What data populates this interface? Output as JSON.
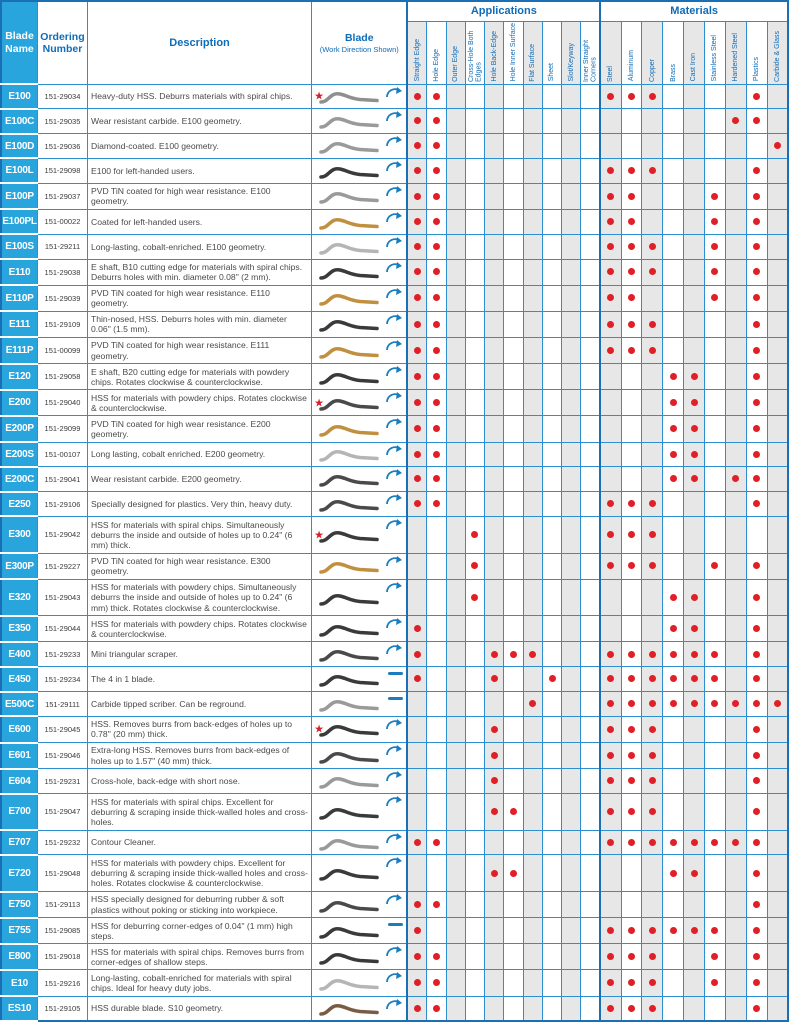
{
  "table": {
    "headers": {
      "blade_name": "Blade Name",
      "ordering_number": "Ordering Number",
      "description": "Description",
      "blade": "Blade",
      "blade_sub": "(Work Direction Shown)",
      "applications": "Applications",
      "materials": "Materials",
      "application_columns": [
        "Straight Edge",
        "Hole Edge",
        "Outer Edge",
        "Cross-Hole Both Edges",
        "Hole Back-Edge",
        "Hole Inner Surface",
        "Flat Surface",
        "Sheet",
        "Slot/Keyway",
        "Inner Straight Corners"
      ],
      "material_columns": [
        "Steel",
        "Aluminum",
        "Copper",
        "Brass",
        "Cast Iron",
        "Stainless Steel",
        "Hardened Steel",
        "Plastics",
        "Carbide & Glass"
      ]
    },
    "colors": {
      "header_blue": "#0e6cb8",
      "cell_blue": "#29a5de",
      "grid_blue": "#2e8fd0",
      "dot_red": "#e01f26",
      "star_red": "#d42027",
      "stripe_gray": "#e7e7e7"
    },
    "rows": [
      {
        "name": "E100",
        "order": "151-29034",
        "desc": "Heavy-duty HSS. Deburrs materials with spiral chips.",
        "star": true,
        "motion": "arc",
        "blade_color": "#8f8f8f",
        "apps": [
          1,
          2
        ],
        "mats": [
          1,
          2,
          3,
          8
        ]
      },
      {
        "name": "E100C",
        "order": "151-29035",
        "desc": "Wear resistant carbide. E100 geometry.",
        "star": false,
        "motion": "arc",
        "blade_color": "#9a9a9a",
        "apps": [
          1,
          2
        ],
        "mats": [
          7,
          8
        ]
      },
      {
        "name": "E100D",
        "order": "151-29036",
        "desc": "Diamond-coated. E100 geometry.",
        "star": false,
        "motion": "arc",
        "blade_color": "#9a9a9a",
        "apps": [
          1,
          2
        ],
        "mats": [
          9
        ]
      },
      {
        "name": "E100L",
        "order": "151-29098",
        "desc": "E100 for left-handed users.",
        "star": false,
        "motion": "arc",
        "blade_color": "#3a3a3a",
        "apps": [
          1,
          2
        ],
        "mats": [
          1,
          2,
          3,
          8
        ]
      },
      {
        "name": "E100P",
        "order": "151-29037",
        "desc": "PVD TiN coated for high wear resistance. E100 geometry.",
        "star": false,
        "motion": "arc",
        "blade_color": "#9a9a9a",
        "apps": [
          1,
          2
        ],
        "mats": [
          1,
          2,
          6,
          8
        ]
      },
      {
        "name": "E100PL",
        "order": "151-00022",
        "desc": "Coated for left-handed users.",
        "star": false,
        "motion": "arc",
        "blade_color": "#c09040",
        "apps": [
          1,
          2
        ],
        "mats": [
          1,
          2,
          6,
          8
        ]
      },
      {
        "name": "E100S",
        "order": "151-29211",
        "desc": "Long-lasting, cobalt-enriched. E100 geometry.",
        "star": false,
        "motion": "arc",
        "blade_color": "#b5b5b5",
        "apps": [
          1,
          2
        ],
        "mats": [
          1,
          2,
          3,
          6,
          8
        ]
      },
      {
        "name": "E110",
        "order": "151-29038",
        "desc": "E shaft, B10 cutting edge for materials with spiral chips. Deburrs holes with min. diameter 0.08\" (2 mm).",
        "star": false,
        "motion": "arc",
        "blade_color": "#3a3a3a",
        "apps": [
          1,
          2
        ],
        "mats": [
          1,
          2,
          3,
          6,
          8
        ]
      },
      {
        "name": "E110P",
        "order": "151-29039",
        "desc": "PVD TiN coated for high wear resistance. E110 geometry.",
        "star": false,
        "motion": "arc",
        "blade_color": "#c09040",
        "apps": [
          1,
          2
        ],
        "mats": [
          1,
          2,
          6,
          8
        ]
      },
      {
        "name": "E111",
        "order": "151-29109",
        "desc": "Thin-nosed, HSS. Deburrs holes with min. diameter 0.06\" (1.5 mm).",
        "star": false,
        "motion": "arc",
        "blade_color": "#3a3a3a",
        "apps": [
          1,
          2
        ],
        "mats": [
          1,
          2,
          3,
          8
        ]
      },
      {
        "name": "E111P",
        "order": "151-00099",
        "desc": "PVD TiN coated for high wear resistance. E111 geometry.",
        "star": false,
        "motion": "arc",
        "blade_color": "#c09040",
        "apps": [
          1,
          2
        ],
        "mats": [
          1,
          2,
          3,
          8
        ]
      },
      {
        "name": "E120",
        "order": "151-29058",
        "desc": "E shaft, B20 cutting edge for materials with powdery chips. Rotates clockwise & counterclockwise.",
        "star": false,
        "motion": "arc",
        "blade_color": "#3a3a3a",
        "apps": [
          1,
          2
        ],
        "mats": [
          4,
          5,
          8
        ]
      },
      {
        "name": "E200",
        "order": "151-29040",
        "desc": "HSS for materials with powdery chips. Rotates clockwise & counterclockwise.",
        "star": true,
        "motion": "arc",
        "blade_color": "#4a4a4a",
        "apps": [
          1,
          2
        ],
        "mats": [
          4,
          5,
          8
        ]
      },
      {
        "name": "E200P",
        "order": "151-29099",
        "desc": "PVD TiN coated for high wear resistance. E200 geometry.",
        "star": false,
        "motion": "arc",
        "blade_color": "#c09040",
        "apps": [
          1,
          2
        ],
        "mats": [
          4,
          5,
          8
        ]
      },
      {
        "name": "E200S",
        "order": "151-00107",
        "desc": "Long lasting, cobalt enriched. E200 geometry.",
        "star": false,
        "motion": "arc",
        "blade_color": "#b5b5b5",
        "apps": [
          1,
          2
        ],
        "mats": [
          4,
          5,
          8
        ]
      },
      {
        "name": "E200C",
        "order": "151-29041",
        "desc": "Wear resistant carbide. E200 geometry.",
        "star": false,
        "motion": "arc",
        "blade_color": "#4a4a4a",
        "apps": [
          1,
          2
        ],
        "mats": [
          4,
          5,
          7,
          8
        ]
      },
      {
        "name": "E250",
        "order": "151-29106",
        "desc": "Specially designed for plastics. Very thin, heavy duty.",
        "star": false,
        "motion": "arc",
        "blade_color": "#4a4a4a",
        "apps": [
          1,
          2
        ],
        "mats": [
          1,
          2,
          3,
          8
        ]
      },
      {
        "name": "E300",
        "order": "151-29042",
        "desc": "HSS for materials with spiral chips. Simultaneously deburrs the inside and outside of holes up to 0.24\" (6 mm) thick.",
        "star": true,
        "motion": "arc",
        "blade_color": "#3a3a3a",
        "apps": [
          4
        ],
        "mats": [
          1,
          2,
          3
        ]
      },
      {
        "name": "E300P",
        "order": "151-29227",
        "desc": "PVD TiN coated for high wear resistance. E300 geometry.",
        "star": false,
        "motion": "arc",
        "blade_color": "#c09040",
        "apps": [
          4
        ],
        "mats": [
          1,
          2,
          3,
          6,
          8
        ]
      },
      {
        "name": "E320",
        "order": "151-29043",
        "desc": "HSS for materials with powdery chips. Simultaneously deburrs the inside and outside of holes up to 0.24\" (6 mm) thick. Rotates clockwise & counterclockwise.",
        "star": false,
        "motion": "arc",
        "blade_color": "#3a3a3a",
        "apps": [
          4
        ],
        "mats": [
          4,
          5,
          8
        ]
      },
      {
        "name": "E350",
        "order": "151-29044",
        "desc": "HSS for materials with powdery chips. Rotates clockwise & counterclockwise.",
        "star": false,
        "motion": "arc",
        "blade_color": "#3a3a3a",
        "apps": [
          1
        ],
        "mats": [
          4,
          5,
          8
        ]
      },
      {
        "name": "E400",
        "order": "151-29233",
        "desc": "Mini triangular scraper.",
        "star": false,
        "motion": "arc",
        "blade_color": "#4a4a4a",
        "apps": [
          1,
          5,
          6,
          7
        ],
        "mats": [
          1,
          2,
          3,
          4,
          5,
          6,
          8
        ]
      },
      {
        "name": "E450",
        "order": "151-29234",
        "desc": "The 4 in 1 blade.",
        "star": false,
        "motion": "line",
        "blade_color": "#3a3a3a",
        "apps": [
          1,
          5,
          8
        ],
        "mats": [
          1,
          2,
          3,
          4,
          5,
          6,
          8
        ]
      },
      {
        "name": "E500C",
        "order": "151-29111",
        "desc": "Carbide tipped scriber. Can be reground.",
        "star": false,
        "motion": "line",
        "blade_color": "#9a9a9a",
        "apps": [
          7
        ],
        "mats": [
          1,
          2,
          3,
          4,
          5,
          6,
          7,
          8,
          9
        ]
      },
      {
        "name": "E600",
        "order": "151-29045",
        "desc": "HSS. Removes burrs from back-edges of holes up to 0.78\" (20 mm) thick.",
        "star": true,
        "motion": "arc",
        "blade_color": "#3a3a3a",
        "apps": [
          5
        ],
        "mats": [
          1,
          2,
          3,
          8
        ]
      },
      {
        "name": "E601",
        "order": "151-29046",
        "desc": "Extra-long HSS. Removes burrs from back-edges of holes up to 1.57\" (40 mm) thick.",
        "star": false,
        "motion": "arc",
        "blade_color": "#4a4a4a",
        "apps": [
          5
        ],
        "mats": [
          1,
          2,
          3,
          8
        ]
      },
      {
        "name": "E604",
        "order": "151-29231",
        "desc": "Cross-hole, back-edge with short nose.",
        "star": false,
        "motion": "arc",
        "blade_color": "#9a9a9a",
        "apps": [
          5
        ],
        "mats": [
          1,
          2,
          3,
          8
        ]
      },
      {
        "name": "E700",
        "order": "151-29047",
        "desc": "HSS for materials with spiral chips. Excellent for deburring & scraping inside thick-walled holes and cross-holes.",
        "star": false,
        "motion": "arc",
        "blade_color": "#3a3a3a",
        "apps": [
          5,
          6
        ],
        "mats": [
          1,
          2,
          3,
          8
        ]
      },
      {
        "name": "E707",
        "order": "151-29232",
        "desc": "Contour Cleaner.",
        "star": false,
        "motion": "arc",
        "blade_color": "#9a9a9a",
        "apps": [
          1,
          2
        ],
        "mats": [
          1,
          2,
          3,
          4,
          5,
          6,
          7,
          8
        ]
      },
      {
        "name": "E720",
        "order": "151-29048",
        "desc": "HSS for materials with powdery chips. Excellent for deburring & scraping inside thick-walled holes and cross-holes. Rotates clockwise & counterclockwise.",
        "star": false,
        "motion": "arc",
        "blade_color": "#3a3a3a",
        "apps": [
          5,
          6
        ],
        "mats": [
          4,
          5,
          8
        ]
      },
      {
        "name": "E750",
        "order": "151-29113",
        "desc": "HSS specially designed for deburring rubber & soft plastics without poking or sticking into workpiece.",
        "star": false,
        "motion": "arc",
        "blade_color": "#4a4a4a",
        "apps": [
          1,
          2
        ],
        "mats": [
          8
        ]
      },
      {
        "name": "E755",
        "order": "151-29085",
        "desc": "HSS for deburring corner-edges of 0.04\" (1 mm) high steps.",
        "star": false,
        "motion": "line",
        "blade_color": "#3a3a3a",
        "apps": [
          1
        ],
        "mats": [
          1,
          2,
          3,
          4,
          5,
          6,
          8
        ]
      },
      {
        "name": "E800",
        "order": "151-29018",
        "desc": "HSS for materials with spiral chips. Removes burrs from corner-edges of shallow steps.",
        "star": false,
        "motion": "arc",
        "blade_color": "#3a3a3a",
        "apps": [
          1,
          2
        ],
        "mats": [
          1,
          2,
          3,
          6,
          8
        ]
      },
      {
        "name": "E10",
        "order": "151-29216",
        "desc": "Long-lasting, cobalt-enriched for materials with spiral chips. Ideal for heavy duty jobs.",
        "star": false,
        "motion": "arc",
        "blade_color": "#b5b5b5",
        "apps": [
          1,
          2
        ],
        "mats": [
          1,
          2,
          3,
          6,
          8
        ]
      },
      {
        "name": "ES10",
        "order": "151-29105",
        "desc": "HSS durable blade. S10 geometry.",
        "star": false,
        "motion": "arc",
        "blade_color": "#7a5c44",
        "apps": [
          1,
          2
        ],
        "mats": [
          1,
          2,
          3,
          8
        ]
      }
    ]
  }
}
